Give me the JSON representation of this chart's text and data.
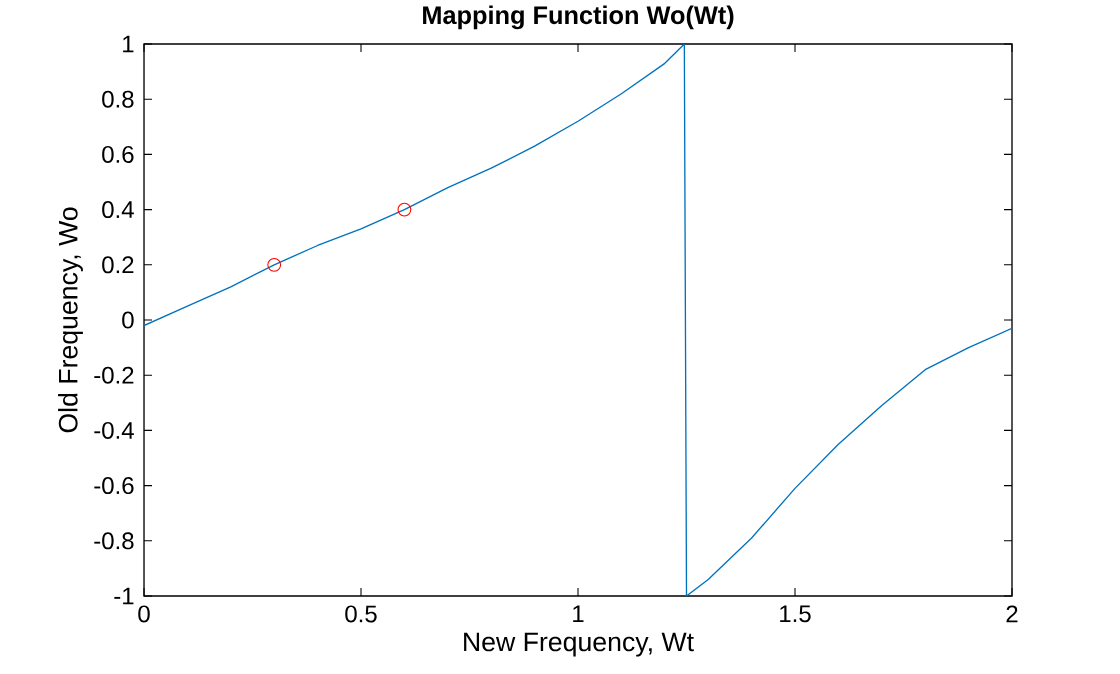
{
  "chart_data": {
    "type": "line",
    "title": "Mapping Function Wo(Wt)",
    "xlabel": "New Frequency, Wt",
    "ylabel": "Old Frequency, Wo",
    "xlim": [
      0,
      2
    ],
    "ylim": [
      -1,
      1
    ],
    "xticks": [
      0,
      0.5,
      1,
      1.5,
      2
    ],
    "yticks": [
      -1,
      -0.8,
      -0.6,
      -0.4,
      -0.2,
      0,
      0.2,
      0.4,
      0.6,
      0.8,
      1
    ],
    "grid": false,
    "series": [
      {
        "color": "#0072bd",
        "marker": "none",
        "x": [
          0,
          0.1,
          0.2,
          0.3,
          0.4,
          0.5,
          0.6,
          0.7,
          0.8,
          0.9,
          1.0,
          1.1,
          1.2,
          1.245,
          1.25,
          1.3,
          1.4,
          1.5,
          1.6,
          1.7,
          1.8,
          1.9,
          2.0
        ],
        "values": [
          -0.02,
          0.05,
          0.12,
          0.2,
          0.27,
          0.33,
          0.4,
          0.48,
          0.55,
          0.63,
          0.72,
          0.82,
          0.93,
          1,
          -1,
          -0.94,
          -0.79,
          -0.61,
          -0.45,
          -0.31,
          -0.18,
          -0.1,
          -0.03
        ]
      },
      {
        "type": "scatter",
        "color": "#ff0000",
        "marker": "circle",
        "x": [
          0.3,
          0.6
        ],
        "values": [
          0.2,
          0.4
        ]
      }
    ]
  }
}
